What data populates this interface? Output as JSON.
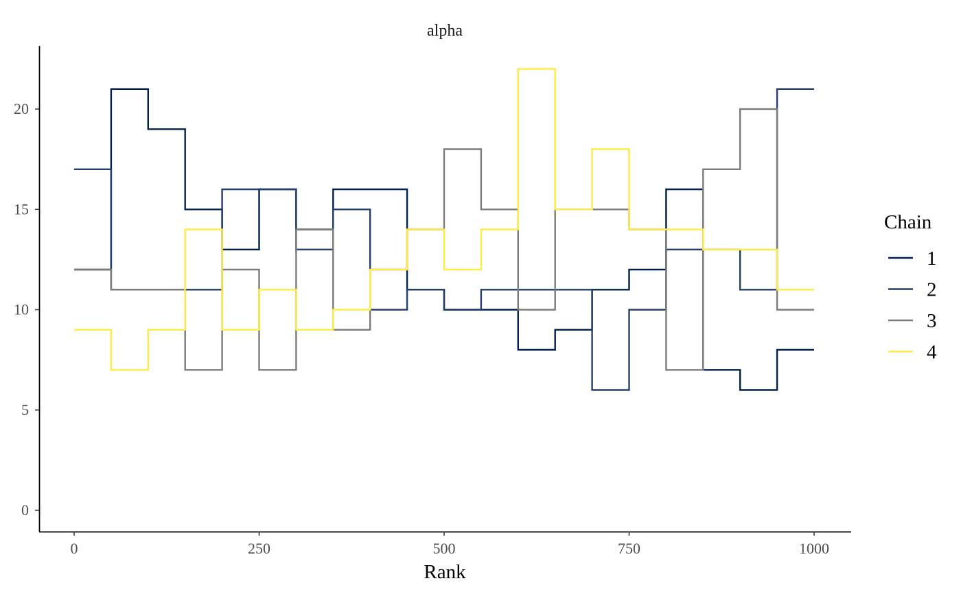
{
  "chart_data": {
    "type": "line",
    "step": true,
    "title": "alpha",
    "xlabel": "Rank",
    "ylabel": "",
    "xlim": [
      -92,
      1000
    ],
    "ylim": [
      -1,
      23
    ],
    "xticks": [
      0,
      250,
      500,
      750,
      1000
    ],
    "yticks": [
      0,
      5,
      10,
      15,
      20
    ],
    "bin_edges": [
      0,
      50,
      100,
      150,
      200,
      250,
      300,
      350,
      400,
      450,
      500,
      550,
      600,
      650,
      700,
      750,
      800,
      850,
      900,
      950,
      1000
    ],
    "legend": {
      "title": "Chain",
      "position": "right"
    },
    "series": [
      {
        "name": "1",
        "color": "#00204D",
        "values": [
          12,
          21,
          19,
          15,
          13,
          16,
          14,
          16,
          16,
          11,
          10,
          10,
          8,
          9,
          11,
          12,
          16,
          7,
          6,
          8
        ]
      },
      {
        "name": "2",
        "color": "#233E6C",
        "values": [
          17,
          11,
          11,
          11,
          16,
          16,
          13,
          15,
          10,
          11,
          10,
          11,
          11,
          11,
          6,
          10,
          13,
          13,
          11,
          21
        ]
      },
      {
        "name": "3",
        "color": "#7C7B78",
        "values": [
          12,
          11,
          11,
          7,
          12,
          7,
          14,
          9,
          12,
          14,
          18,
          15,
          10,
          15,
          15,
          14,
          7,
          17,
          20,
          10
        ]
      },
      {
        "name": "4",
        "color": "#FFEA46",
        "values": [
          9,
          7,
          9,
          14,
          9,
          11,
          9,
          10,
          12,
          14,
          12,
          14,
          22,
          15,
          18,
          14,
          14,
          13,
          13,
          11
        ]
      }
    ]
  }
}
